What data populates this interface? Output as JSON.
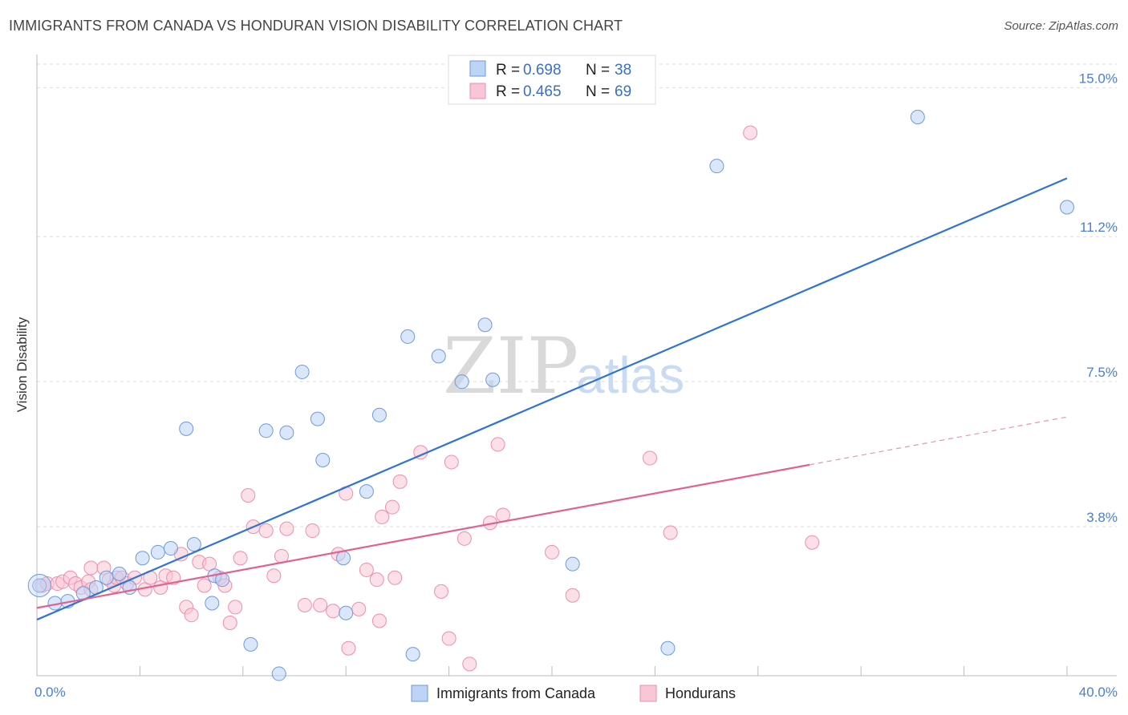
{
  "title": "IMMIGRANTS FROM CANADA VS HONDURAN VISION DISABILITY CORRELATION CHART",
  "source": "Source: ZipAtlas.com",
  "watermark": {
    "zip": "ZIP",
    "atlas": "atlas"
  },
  "colors": {
    "blue_fill": "#bcd4f5",
    "blue_stroke": "#6f9ad8",
    "blue_line": "#2f74d0",
    "pink_fill": "#f9c6d6",
    "pink_stroke": "#ec8fae",
    "pink_line": "#e0638f",
    "grid": "#dddddd",
    "axis_text": "#4a7fd0"
  },
  "legend": {
    "rows": [
      {
        "r_label": "R =",
        "r_value": "0.698",
        "n_label": "N =",
        "n_value": "38"
      },
      {
        "r_label": "R =",
        "r_value": "0.465",
        "n_label": "N =",
        "n_value": "69"
      }
    ]
  },
  "bottom_legend": [
    "Immigrants from Canada",
    "Hondurans"
  ],
  "chart_data": {
    "type": "scatter",
    "title": "IMMIGRANTS FROM CANADA VS HONDURAN VISION DISABILITY CORRELATION CHART",
    "xlabel": "",
    "ylabel": "Vision Disability",
    "x_tick_labels": [
      "0.0%",
      "40.0%"
    ],
    "y_tick_labels": [
      "15.0%",
      "11.2%",
      "7.5%",
      "3.8%"
    ],
    "y_ticks": [
      15.0,
      11.2,
      7.5,
      3.8
    ],
    "xlim": [
      0,
      40
    ],
    "ylim": [
      0,
      15.6
    ],
    "grid": true,
    "legend_position": "top-center",
    "series": [
      {
        "name": "Immigrants from Canada",
        "r": 0.698,
        "n": 38,
        "trend": {
          "x": [
            0,
            40
          ],
          "y": [
            1.43,
            12.69
          ]
        },
        "points": [
          [
            0.1,
            2.3
          ],
          [
            0.7,
            1.85
          ],
          [
            1.2,
            1.9
          ],
          [
            1.8,
            2.1
          ],
          [
            2.3,
            2.25
          ],
          [
            2.7,
            2.5
          ],
          [
            3.2,
            2.6
          ],
          [
            3.6,
            2.25
          ],
          [
            4.1,
            3.0
          ],
          [
            4.7,
            3.15
          ],
          [
            5.2,
            3.25
          ],
          [
            5.8,
            6.3
          ],
          [
            6.1,
            3.35
          ],
          [
            6.8,
            1.85
          ],
          [
            6.9,
            2.55
          ],
          [
            7.2,
            2.45
          ],
          [
            8.3,
            0.8
          ],
          [
            8.9,
            6.25
          ],
          [
            9.4,
            0.05
          ],
          [
            9.7,
            6.2
          ],
          [
            10.3,
            7.75
          ],
          [
            10.9,
            6.55
          ],
          [
            11.1,
            5.5
          ],
          [
            11.9,
            3.0
          ],
          [
            12.0,
            1.6
          ],
          [
            12.8,
            4.7
          ],
          [
            13.3,
            6.65
          ],
          [
            14.4,
            8.65
          ],
          [
            14.6,
            0.55
          ],
          [
            15.6,
            8.15
          ],
          [
            16.5,
            7.5
          ],
          [
            17.4,
            8.95
          ],
          [
            17.7,
            7.55
          ],
          [
            20.8,
            2.85
          ],
          [
            24.5,
            0.7
          ],
          [
            26.4,
            13.0
          ],
          [
            34.2,
            14.25
          ],
          [
            40.0,
            11.95
          ]
        ]
      },
      {
        "name": "Hondurans",
        "r": 0.465,
        "n": 69,
        "trend": {
          "x": [
            0,
            30
          ],
          "y": [
            1.73,
            5.38
          ]
        },
        "trend_dashed": {
          "x": [
            30,
            40
          ],
          "y": [
            5.38,
            6.6
          ]
        },
        "points": [
          [
            0.2,
            2.3
          ],
          [
            0.4,
            2.35
          ],
          [
            0.8,
            2.35
          ],
          [
            1.0,
            2.4
          ],
          [
            1.3,
            2.5
          ],
          [
            1.5,
            2.35
          ],
          [
            1.7,
            2.25
          ],
          [
            2.0,
            2.4
          ],
          [
            2.1,
            2.2
          ],
          [
            2.1,
            2.75
          ],
          [
            2.6,
            2.75
          ],
          [
            2.8,
            2.45
          ],
          [
            3.0,
            2.3
          ],
          [
            3.1,
            2.5
          ],
          [
            3.3,
            2.5
          ],
          [
            3.5,
            2.35
          ],
          [
            3.8,
            2.5
          ],
          [
            4.2,
            2.2
          ],
          [
            4.4,
            2.5
          ],
          [
            4.8,
            2.25
          ],
          [
            5.0,
            2.55
          ],
          [
            5.3,
            2.5
          ],
          [
            5.6,
            3.1
          ],
          [
            5.8,
            1.75
          ],
          [
            6.0,
            1.55
          ],
          [
            6.3,
            2.9
          ],
          [
            6.5,
            2.3
          ],
          [
            6.7,
            2.85
          ],
          [
            7.1,
            2.5
          ],
          [
            7.3,
            2.3
          ],
          [
            7.5,
            1.35
          ],
          [
            7.7,
            1.75
          ],
          [
            7.9,
            3.0
          ],
          [
            8.2,
            4.6
          ],
          [
            8.4,
            3.8
          ],
          [
            8.9,
            3.7
          ],
          [
            9.2,
            2.55
          ],
          [
            9.5,
            3.05
          ],
          [
            9.7,
            3.75
          ],
          [
            10.4,
            1.8
          ],
          [
            10.7,
            3.7
          ],
          [
            11.0,
            1.8
          ],
          [
            11.5,
            1.65
          ],
          [
            11.7,
            3.1
          ],
          [
            12.0,
            4.65
          ],
          [
            12.1,
            0.7
          ],
          [
            12.5,
            1.7
          ],
          [
            12.8,
            2.7
          ],
          [
            13.2,
            2.45
          ],
          [
            13.3,
            1.4
          ],
          [
            13.4,
            4.05
          ],
          [
            13.8,
            4.3
          ],
          [
            13.9,
            2.5
          ],
          [
            14.1,
            4.95
          ],
          [
            14.9,
            5.7
          ],
          [
            15.7,
            2.15
          ],
          [
            16.0,
            0.95
          ],
          [
            16.1,
            5.45
          ],
          [
            16.6,
            3.5
          ],
          [
            16.8,
            0.3
          ],
          [
            17.6,
            3.9
          ],
          [
            17.9,
            5.9
          ],
          [
            18.1,
            4.1
          ],
          [
            20.0,
            3.15
          ],
          [
            20.8,
            2.05
          ],
          [
            23.8,
            5.55
          ],
          [
            24.6,
            3.65
          ],
          [
            27.7,
            13.85
          ],
          [
            30.1,
            3.4
          ]
        ]
      }
    ]
  }
}
